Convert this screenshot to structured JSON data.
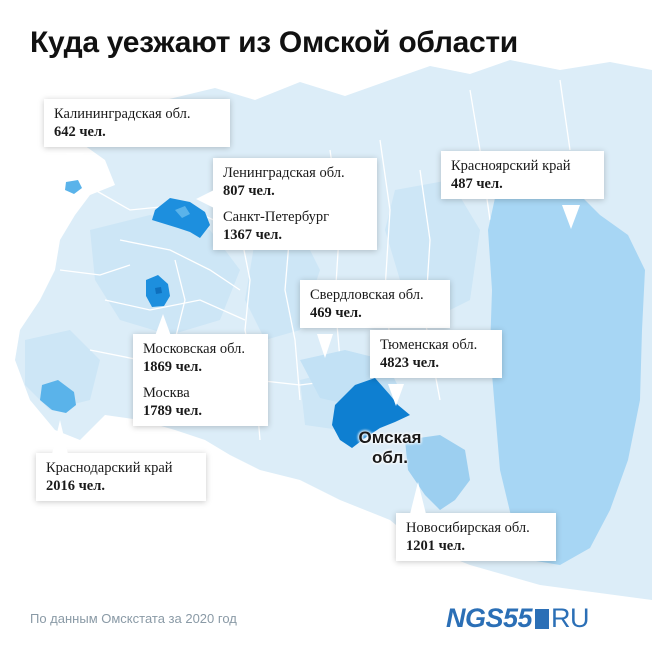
{
  "title": "Куда уезжают из Омской области",
  "colors": {
    "land": "#dcedf8",
    "region_light": "#cde6f6",
    "highlight_medium": "#7ec3ec",
    "highlight_strong": "#1d8fde",
    "krasnoyarsk": "#a7d6f4",
    "omsk": "#0e7fd1"
  },
  "callouts": {
    "kaliningrad": {
      "name": "Калининградская обл.",
      "value": "642 чел."
    },
    "leningrad": {
      "name": "Ленинградская обл.",
      "value": "807 чел."
    },
    "spb": {
      "name": "Санкт-Петербург",
      "value": "1367 чел."
    },
    "krasnoyarsk": {
      "name": "Красноярский край",
      "value": "487 чел."
    },
    "sverdlovsk": {
      "name": "Свердловская обл.",
      "value": "469 чел."
    },
    "tyumen": {
      "name": "Тюменская обл.",
      "value": "4823 чел."
    },
    "moscow_obl": {
      "name": "Московская обл.",
      "value": "1869 чел."
    },
    "moscow": {
      "name": "Москва",
      "value": "1789 чел."
    },
    "krasnodar": {
      "name": "Краснодарский край",
      "value": "2016 чел."
    },
    "novosibirsk": {
      "name": "Новосибирская обл.",
      "value": "1201 чел."
    }
  },
  "omsk_label": {
    "line1": "Омская",
    "line2": "обл."
  },
  "source": "По данным Омскстата за 2020 год",
  "logo": {
    "part1": "NGS55",
    "part2": "RU"
  }
}
